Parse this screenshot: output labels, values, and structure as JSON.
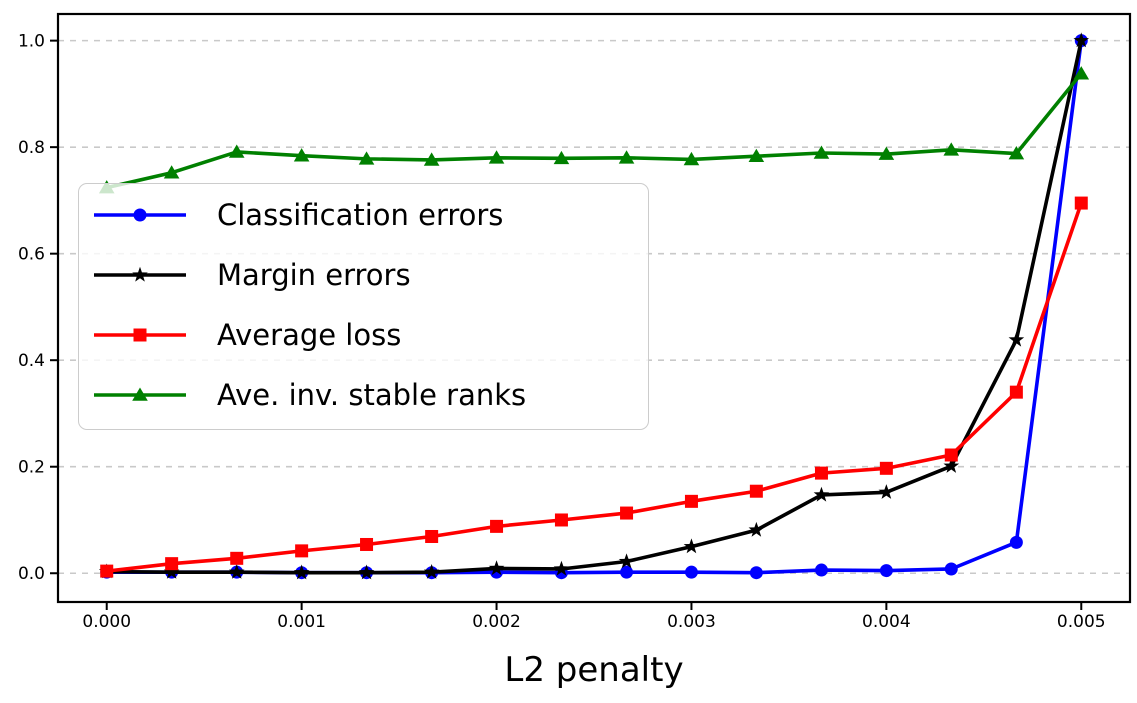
{
  "chart_data": {
    "type": "line",
    "title": "",
    "xlabel": "L2 penalty",
    "ylabel": "",
    "xlim": [
      -0.00025,
      0.00525
    ],
    "ylim": [
      -0.054,
      1.05
    ],
    "x_ticks": [
      0.0,
      0.001,
      0.002,
      0.003,
      0.004,
      0.005
    ],
    "x_tick_labels": [
      "0.000",
      "0.001",
      "0.002",
      "0.003",
      "0.004",
      "0.005"
    ],
    "y_ticks": [
      0.0,
      0.2,
      0.4,
      0.6,
      0.8,
      1.0
    ],
    "y_tick_labels": [
      "0.0",
      "0.2",
      "0.4",
      "0.6",
      "0.8",
      "1.0"
    ],
    "grid": "horizontal-dashed",
    "legend_position": "upper-left-inside",
    "x": [
      0.0,
      0.000333,
      0.000667,
      0.001,
      0.001333,
      0.001667,
      0.002,
      0.002333,
      0.002667,
      0.003,
      0.003333,
      0.003667,
      0.004,
      0.004333,
      0.004667,
      0.005
    ],
    "series": [
      {
        "name": "Classification errors",
        "color": "#0000ff",
        "marker": "circle",
        "values": [
          0.002,
          0.002,
          0.002,
          0.001,
          0.001,
          0.001,
          0.002,
          0.001,
          0.002,
          0.002,
          0.001,
          0.006,
          0.005,
          0.008,
          0.058,
          1.0
        ]
      },
      {
        "name": "Margin errors",
        "color": "#000000",
        "marker": "star",
        "values": [
          0.003,
          0.002,
          0.002,
          0.001,
          0.001,
          0.002,
          0.009,
          0.008,
          0.022,
          0.05,
          0.081,
          0.147,
          0.152,
          0.201,
          0.438,
          1.0
        ]
      },
      {
        "name": "Average loss",
        "color": "#ff0000",
        "marker": "square",
        "values": [
          0.004,
          0.018,
          0.028,
          0.042,
          0.054,
          0.069,
          0.088,
          0.1,
          0.113,
          0.135,
          0.154,
          0.188,
          0.197,
          0.222,
          0.34,
          0.695
        ]
      },
      {
        "name": "Ave. inv. stable ranks",
        "color": "#008000",
        "marker": "triangle",
        "values": [
          0.724,
          0.752,
          0.791,
          0.784,
          0.778,
          0.776,
          0.78,
          0.779,
          0.78,
          0.777,
          0.783,
          0.789,
          0.787,
          0.795,
          0.788,
          0.938
        ]
      }
    ]
  },
  "colors": {
    "background": "#ffffff",
    "grid": "#c9c9c9",
    "spine": "#000000",
    "tick_text": "#000000",
    "legend_border": "#cccccc"
  }
}
